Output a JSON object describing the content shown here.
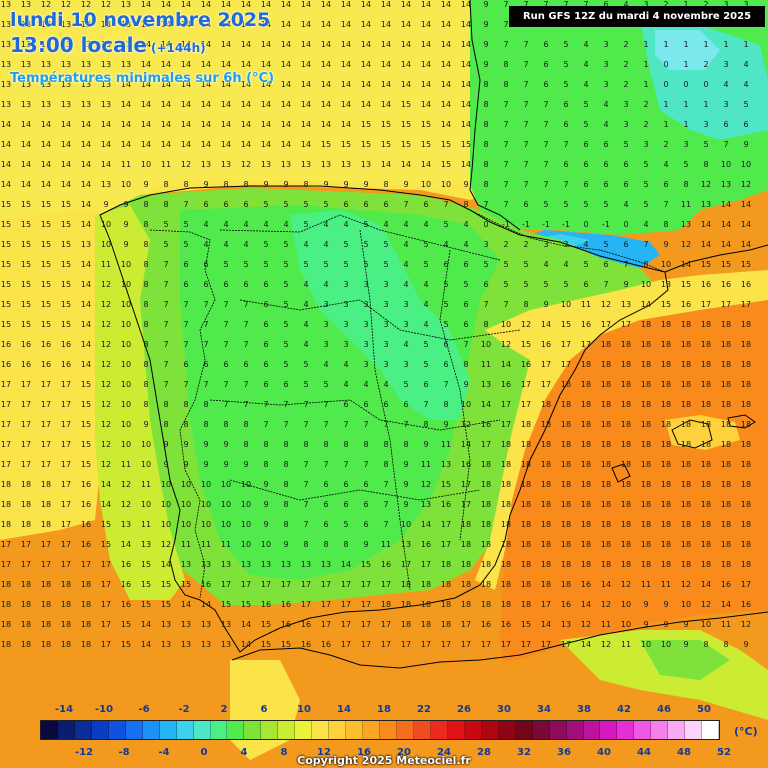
{
  "title": {
    "date": "lundi 10 novembre 2025",
    "time": "13:00 locale",
    "lead": "(+144h)",
    "subtitle": "Températures minimales sur 6h (°C)"
  },
  "run_info": "Run GFS 12Z du mardi 4 novembre 2025",
  "legend": {
    "unit": "(°C)",
    "top_labels": [
      "-14",
      "-10",
      "-6",
      "-2",
      "2",
      "6",
      "10",
      "14",
      "18",
      "22",
      "26",
      "30",
      "34",
      "38",
      "42",
      "46",
      "50"
    ],
    "bottom_labels": [
      "-12",
      "-8",
      "-4",
      "0",
      "4",
      "8",
      "12",
      "16",
      "20",
      "24",
      "28",
      "32",
      "36",
      "40",
      "44",
      "48",
      "52"
    ],
    "colors": [
      "#0a0a3c",
      "#0c1c6e",
      "#0c2c99",
      "#0a3cc4",
      "#0e52e4",
      "#1670f0",
      "#1c92f4",
      "#26b4f4",
      "#3cd2ec",
      "#4ee6c4",
      "#4af084",
      "#50ea4c",
      "#7ee23a",
      "#a8e634",
      "#ccec34",
      "#eef23a",
      "#fbe34a",
      "#fdd23c",
      "#fdbe2e",
      "#fba524",
      "#f98a1c",
      "#f56e20",
      "#f04c22",
      "#ec2a1e",
      "#e01416",
      "#c80a10",
      "#ac0610",
      "#8e0414",
      "#74041c",
      "#7c0838",
      "#8e0c5a",
      "#a20e7c",
      "#bc129e",
      "#d21abe",
      "#e42ed6",
      "#ee58e2",
      "#f480ea",
      "#f8aaf2",
      "#fcd2f8",
      "#ffffff"
    ]
  },
  "copyright": "Copyright 2025 Meteociel.fr",
  "field": {
    "cols": 38,
    "rows": 33,
    "values": [
      "13 13 12 12 12 12 13 14 14 14 14 14 14 14 14 14 14 14 14 14 14 14 14 14 9 7 7 7 7 7 6 4 3 2 1 2 3 3",
      "13 13 13 13 13 13 13 13 14 14 14 14 14 14 14 14 14 14 14 14 14 14 14 14 9 7 7 7 6 5 4 3 2 1 1 3 2 3",
      "13 13 13 13 13 13 13 14 14 14 14 14 14 14 14 14 14 14 14 14 14 14 14 14 9 7 7 6 5 4 3 2 1 1 1 1 1 1",
      "13 13 13 13 13 13 13 14 14 14 14 14 14 14 14 14 14 14 14 14 14 14 14 14 9 8 7 6 5 4 3 2 1 0 1 2 3 4",
      "13 13 13 13 13 13 14 14 14 14 14 14 14 14 14 14 14 14 14 14 14 14 14 14 8 8 7 6 5 4 3 2 1 0 0 0 4 4",
      "13 13 13 13 13 13 14 14 14 14 14 14 14 14 14 14 14 14 14 14 15 14 14 14 8 7 7 7 6 5 4 3 2 1 1 1 3 5",
      "14 14 14 14 14 14 14 14 14 14 14 14 14 14 14 14 14 14 15 15 15 15 14 14 8 7 7 7 6 5 4 3 2 1 1 3 6 6",
      "14 14 14 14 14 14 14 14 14 14 14 14 14 14 14 14 15 15 15 15 15 15 15 15 8 7 7 7 7 6 6 5 3 2 3 5 7 9",
      "14 14 14 14 14 14 11 10 11 12 13 13 12 13 13 13 13 13 13 14 14 14 15 14 8 7 7 7 6 6 6 6 5 4 5 8 10 10",
      "14 14 14 14 14 13 10 9 8 8 9 8 8 9 9 8 9 9 9 8 9 10 10 9 8 7 7 7 7 6 6 6 5 6 8 12 13 12",
      "15 15 15 15 14 9 9 8 8 7 6 6 6 5 5 5 5 6 6 6 7 6 7 8 7 7 6 5 5 5 5 4 5 7 11 13 14 14",
      "15 15 15 15 14 10 9 8 5 5 4 4 4 4 4 5 4 4 5 4 4 4 5 4 0 -1 -1 -1 -1 0 -1 0 4 8 13 14 14 14",
      "15 15 15 15 13 10 9 8 5 5 4 4 4 5 5 4 4 5 5 5 4 5 4 4 3 2 2 3 3 4 5 6 7 9 12 14 14 14",
      "15 15 15 15 14 11 10 8 7 6 6 5 5 5 5 5 5 5 5 5 4 5 6 6 5 5 5 4 4 5 6 7 8 10 14 15 15 15",
      "15 15 15 15 14 12 10 8 7 6 6 6 6 6 5 4 4 3 3 3 4 4 5 5 6 5 5 5 5 6 7 9 10 13 15 16 16 16",
      "15 15 15 15 14 12 10 8 7 7 7 7 7 6 5 4 3 3 3 3 3 4 5 6 7 7 8 9 10 11 12 13 14 15 16 17 17 17",
      "15 15 15 15 14 12 10 8 7 7 7 7 7 6 5 4 3 3 3 3 3 4 5 6 8 10 12 14 15 16 17 17 18 18 18 18 18 18",
      "16 16 16 16 14 12 10 8 7 7 7 7 7 6 5 4 3 3 3 3 4 5 6 7 10 12 15 16 17 17 18 18 18 18 18 18 18 18",
      "16 16 16 16 14 12 10 8 7 6 6 6 6 6 5 5 4 4 3 3 3 5 6 8 11 14 16 17 17 18 18 18 18 18 18 18 18 18",
      "17 17 17 17 15 12 10 8 7 7 7 7 7 6 6 5 5 4 4 4 5 6 7 9 13 16 17 17 18 18 18 18 18 18 18 18 18 18",
      "17 17 17 17 15 12 10 8 8 8 8 7 7 7 7 7 7 6 6 6 6 7 8 10 14 17 17 18 18 18 18 18 18 18 18 18 18 18",
      "17 17 17 17 15 12 10 9 8 8 8 8 8 7 7 7 7 7 7 7 7 8 9 12 16 17 18 18 18 18 18 18 18 18 18 18 18 18",
      "17 17 17 17 15 12 10 10 9 9 9 9 8 8 8 8 8 8 8 8 8 9 11 14 17 18 18 18 18 18 18 18 18 18 18 18 18 18",
      "17 17 17 17 15 12 11 10 9 9 9 9 9 8 8 7 7 7 7 8 9 11 13 16 18 18 18 18 18 18 18 18 18 18 18 18 18 18",
      "18 18 18 17 16 14 12 11 10 10 10 10 10 9 8 7 6 6 6 7 9 12 15 17 18 18 18 18 18 18 18 18 18 18 18 18 18 18",
      "18 18 18 17 16 14 12 10 10 10 10 10 10 9 8 7 6 6 6 7 9 13 16 17 18 18 18 18 18 18 18 18 18 18 18 18 18 18",
      "18 18 18 17 16 15 13 11 10 10 10 10 10 9 8 7 6 5 6 7 10 14 17 18 18 18 18 18 18 18 18 18 18 18 18 18 18 18",
      "17 17 17 17 16 15 14 13 12 11 11 11 10 10 9 8 8 8 9 11 13 16 17 18 18 18 18 18 18 18 18 18 18 18 18 18 18 18",
      "17 17 17 17 17 17 16 15 14 13 13 13 13 13 13 13 13 14 15 16 17 17 18 18 18 18 18 18 18 18 18 18 18 18 18 18 18 18",
      "18 18 18 18 18 17 16 15 15 15 16 17 17 17 17 17 17 17 17 17 18 18 18 18 18 18 18 18 18 16 14 12 11 11 12 14 16 17",
      "18 18 18 18 18 17 16 15 15 14 14 15 15 16 16 17 17 17 17 18 18 18 18 18 18 18 18 17 16 14 12 10 9 9 10 12 14 16",
      "18 18 18 18 18 17 15 14 13 13 13 13 14 15 16 16 17 17 17 17 18 18 18 17 16 16 15 14 13 12 11 10 9 9 9 10 11 12",
      "18 18 18 18 18 17 15 14 13 13 13 13 14 15 15 16 16 17 17 17 17 17 17 17 17 17 17 17 17 14 12 11 10 10 9 8 8 9"
    ]
  }
}
